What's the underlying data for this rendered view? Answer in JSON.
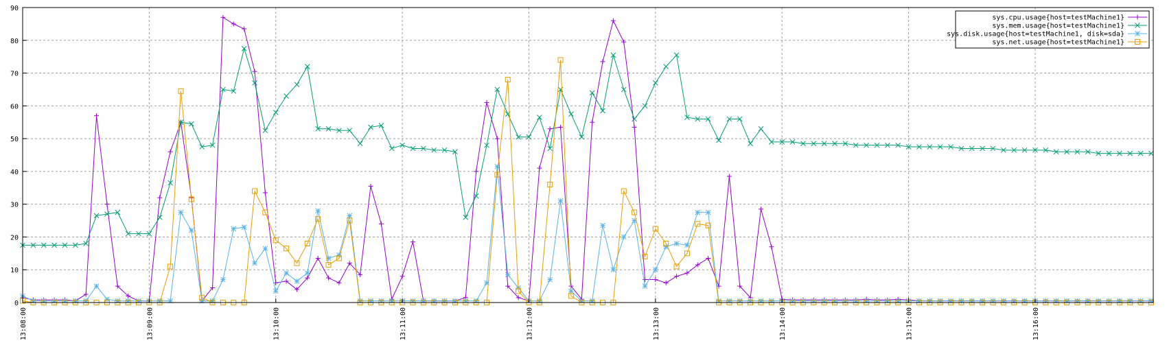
{
  "chart_data": {
    "type": "line",
    "title": "",
    "xlabel": "",
    "ylabel": "",
    "ylim": [
      0,
      90
    ],
    "y_ticks": [
      0,
      10,
      20,
      30,
      40,
      50,
      60,
      70,
      80,
      90
    ],
    "x_range": [
      "13:08:00",
      "13:16:56"
    ],
    "x_ticks": [
      "13:08:00",
      "13:09:00",
      "13:10:00",
      "13:11:00",
      "13:12:00",
      "13:13:00",
      "13:14:00",
      "13:15:00",
      "13:16:00"
    ],
    "grid": true,
    "legend_position": "top-right",
    "x": [
      "13:08:00",
      "13:08:05",
      "13:08:10",
      "13:08:15",
      "13:08:20",
      "13:08:25",
      "13:08:30",
      "13:08:35",
      "13:08:40",
      "13:08:45",
      "13:08:50",
      "13:08:55",
      "13:09:00",
      "13:09:05",
      "13:09:10",
      "13:09:15",
      "13:09:20",
      "13:09:25",
      "13:09:30",
      "13:09:35",
      "13:09:40",
      "13:09:45",
      "13:09:50",
      "13:09:55",
      "13:10:00",
      "13:10:05",
      "13:10:10",
      "13:10:15",
      "13:10:20",
      "13:10:25",
      "13:10:30",
      "13:10:35",
      "13:10:40",
      "13:10:45",
      "13:10:50",
      "13:10:55",
      "13:11:00",
      "13:11:05",
      "13:11:10",
      "13:11:15",
      "13:11:20",
      "13:11:25",
      "13:11:30",
      "13:11:35",
      "13:11:40",
      "13:11:45",
      "13:11:50",
      "13:11:55",
      "13:12:00",
      "13:12:05",
      "13:12:10",
      "13:12:15",
      "13:12:20",
      "13:12:25",
      "13:12:30",
      "13:12:35",
      "13:12:40",
      "13:12:45",
      "13:12:50",
      "13:12:55",
      "13:13:00",
      "13:13:05",
      "13:13:10",
      "13:13:15",
      "13:13:20",
      "13:13:25",
      "13:13:30",
      "13:13:35",
      "13:13:40",
      "13:13:45",
      "13:13:50",
      "13:13:55",
      "13:14:00",
      "13:14:05",
      "13:14:10",
      "13:14:15",
      "13:14:20",
      "13:14:25",
      "13:14:30",
      "13:14:35",
      "13:14:40",
      "13:14:45",
      "13:14:50",
      "13:14:55",
      "13:15:00",
      "13:15:05",
      "13:15:10",
      "13:15:15",
      "13:15:20",
      "13:15:25",
      "13:15:30",
      "13:15:35",
      "13:15:40",
      "13:15:45",
      "13:15:50",
      "13:15:55",
      "13:16:00",
      "13:16:05",
      "13:16:10",
      "13:16:15",
      "13:16:20",
      "13:16:25",
      "13:16:30",
      "13:16:35",
      "13:16:40",
      "13:16:45",
      "13:16:50",
      "13:16:55"
    ],
    "series": [
      {
        "name": "sys.cpu.usage{host=testMachine1}",
        "color": "#9400d3",
        "marker": "plus",
        "values": [
          1.5,
          0.8,
          0.8,
          0.8,
          0.8,
          0.5,
          2.5,
          57,
          30,
          5,
          2,
          0.5,
          0.5,
          32,
          46,
          55,
          32,
          0.5,
          4.5,
          87,
          85,
          83.5,
          70.5,
          33.5,
          6,
          6.5,
          4,
          7.5,
          13.5,
          7.5,
          6,
          12,
          8.5,
          35.5,
          24,
          1,
          8,
          18.5,
          0.5,
          0.5,
          0.5,
          0.5,
          1.5,
          40,
          61,
          50,
          5,
          1.5,
          0.5,
          41,
          53,
          53.5,
          5,
          1,
          55,
          73.5,
          86,
          79.5,
          53.5,
          7,
          7,
          6,
          8,
          9,
          11.5,
          13.5,
          5,
          38.5,
          5,
          1.5,
          28.5,
          17,
          1,
          0.8,
          0.8,
          0.8,
          0.8,
          0.8,
          0.8,
          0.8,
          1,
          0.8,
          0.8,
          1,
          0.8,
          0.5,
          0.5,
          0.5,
          0.5,
          0.5,
          0.5,
          0.5,
          0.5,
          0.5,
          0.5,
          0.5,
          0.5,
          0.5,
          0.5,
          0.5,
          0.5,
          0.5,
          0.5,
          0.5,
          0.5,
          0.5,
          0.5,
          0.5
        ]
      },
      {
        "name": "sys.mem.usage{host=testMachine1}",
        "color": "#009e73",
        "marker": "cross",
        "values": [
          17.5,
          17.5,
          17.5,
          17.5,
          17.5,
          17.5,
          18,
          26.5,
          27,
          27.5,
          21,
          21,
          21,
          26,
          36.5,
          55,
          54.5,
          47.5,
          48,
          65,
          64.5,
          77.5,
          67,
          52.5,
          58,
          63,
          66.5,
          72,
          53,
          53,
          52.5,
          52.5,
          48.5,
          53.5,
          54,
          47,
          48,
          47,
          47,
          46.5,
          46.5,
          46,
          26,
          32.5,
          48,
          65,
          57.5,
          50.5,
          50.5,
          56.5,
          47,
          65,
          57.5,
          50.5,
          64,
          58.5,
          75.5,
          65,
          56,
          60,
          67,
          72,
          75.5,
          56.5,
          56,
          56,
          49.5,
          56,
          56,
          48.5,
          53,
          49,
          49,
          49,
          48.5,
          48.5,
          48.5,
          48.5,
          48.5,
          48,
          48,
          48,
          48,
          48,
          47.5,
          47.5,
          47.5,
          47.5,
          47.5,
          47,
          47,
          47,
          47,
          46.5,
          46.5,
          46.5,
          46.5,
          46.5,
          46,
          46,
          46,
          46,
          45.5,
          45.5,
          45.5,
          45.5,
          45.5,
          45.5
        ]
      },
      {
        "name": "sys.disk.usage{host=testMachine1, disk=sda}",
        "color": "#56b4e9",
        "marker": "star",
        "values": [
          2,
          0.5,
          0.5,
          0.5,
          0.5,
          0.5,
          0.5,
          5,
          1,
          0.5,
          0.5,
          0.5,
          0.5,
          0.5,
          0.5,
          27.5,
          22,
          0.5,
          0.5,
          7,
          22.5,
          23,
          12,
          16.5,
          3.5,
          9,
          6.5,
          9,
          28,
          13.5,
          14.5,
          26.5,
          0.5,
          0.5,
          0.5,
          0.5,
          0.5,
          0.5,
          0.5,
          0.5,
          0.5,
          0.5,
          0.5,
          0.5,
          6,
          41.5,
          8.5,
          4.5,
          0.5,
          0.5,
          7,
          31,
          3.5,
          0.5,
          0.5,
          23.5,
          10,
          20,
          25,
          5,
          10,
          17,
          18,
          17.5,
          27.5,
          27.5,
          0.5,
          0.5,
          0.5,
          0.5,
          0.5,
          0.5,
          0.5,
          0.5,
          0.5,
          0.5,
          0.5,
          0.5,
          0.5,
          0.5,
          0.5,
          0.5,
          0.5,
          0.5,
          0.5,
          0.5,
          0.5,
          0.5,
          0.5,
          0.5,
          0.5,
          0.5,
          0.5,
          0.5,
          0.5,
          0.5,
          0.5,
          0.5,
          0.5,
          0.5,
          0.5,
          0.5,
          0.5,
          0.5,
          0.5,
          0.5,
          0.5,
          0.5
        ]
      },
      {
        "name": "sys.net.usage{host=testMachine1}",
        "color": "#e69f00",
        "marker": "square",
        "values": [
          0.5,
          0,
          0,
          0,
          0,
          0,
          0,
          0,
          0,
          0,
          0,
          0,
          0,
          0,
          11,
          64.5,
          31.5,
          1.5,
          0,
          0,
          0,
          0,
          34,
          27.5,
          19,
          16.5,
          12,
          18,
          25.5,
          11.5,
          13.5,
          25,
          0,
          0,
          0,
          0,
          0,
          0,
          0,
          0,
          0,
          0,
          0,
          0,
          0,
          39,
          68,
          3.5,
          0,
          0,
          36,
          74,
          2,
          0,
          0,
          0,
          0,
          34,
          27.5,
          14,
          22.5,
          18,
          11,
          15,
          24,
          23.5,
          0,
          0,
          0,
          0,
          0,
          0,
          0,
          0,
          0,
          0,
          0,
          0,
          0,
          0,
          0,
          0,
          0,
          0,
          0,
          0,
          0,
          0,
          0,
          0,
          0,
          0,
          0,
          0,
          0,
          0,
          0,
          0,
          0,
          0,
          0,
          0,
          0,
          0,
          0,
          0,
          0,
          0
        ]
      }
    ]
  }
}
